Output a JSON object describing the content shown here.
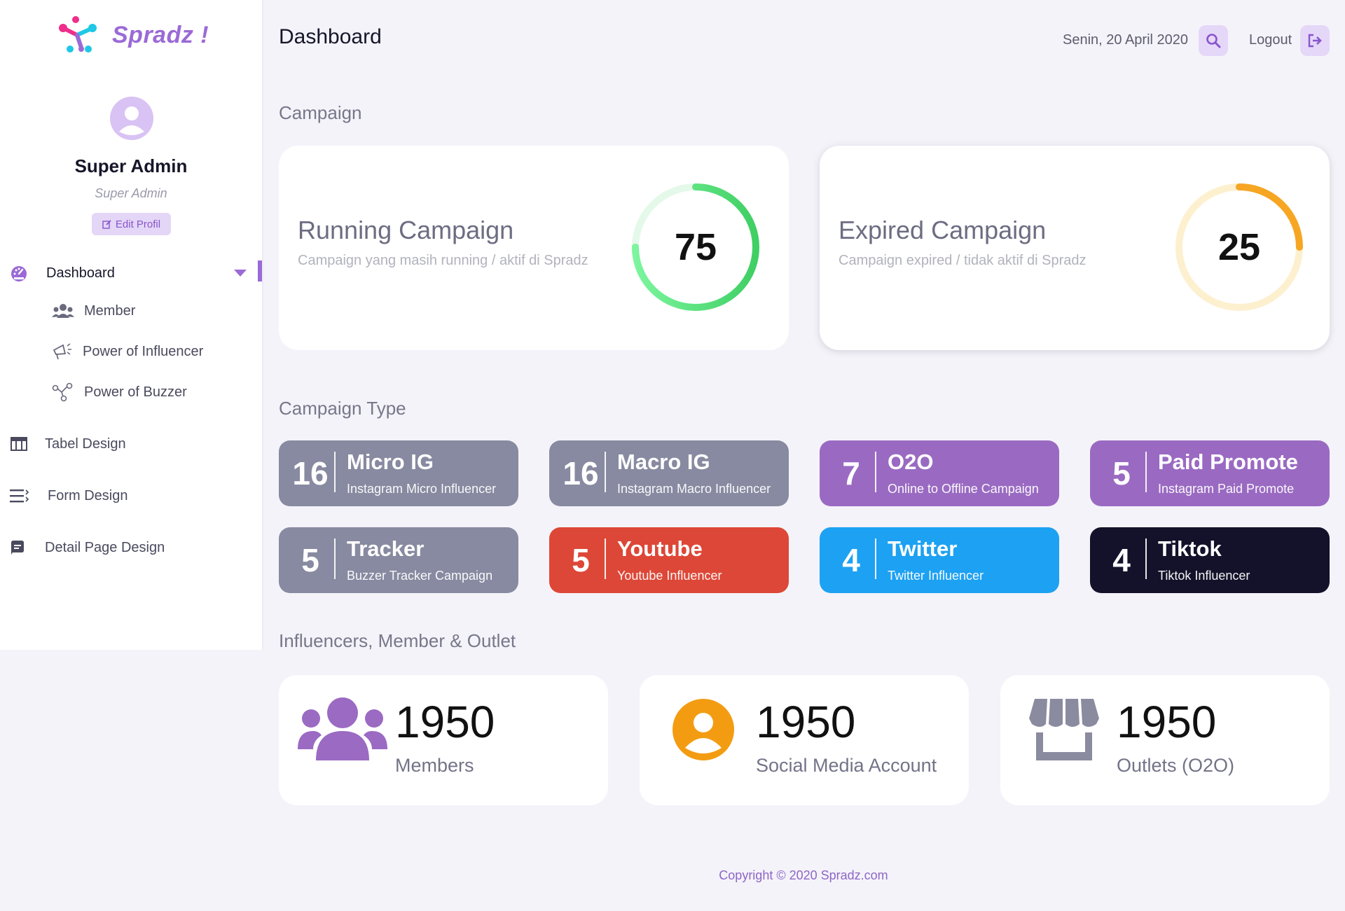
{
  "app": {
    "name": "Spradz !"
  },
  "profile": {
    "name": "Super Admin",
    "role": "Super Admin",
    "edit_label": "Edit Profil"
  },
  "sidebar": {
    "items": [
      {
        "label": "Dashboard",
        "icon": "gauge-icon"
      },
      {
        "label": "Member",
        "icon": "users-icon"
      },
      {
        "label": "Power of Influencer",
        "icon": "megaphone-icon"
      },
      {
        "label": "Power of Buzzer",
        "icon": "share-nodes-icon"
      },
      {
        "label": "Tabel Design",
        "icon": "table-icon"
      },
      {
        "label": "Form Design",
        "icon": "list-icon"
      },
      {
        "label": "Detail Page Design",
        "icon": "message-square-icon"
      }
    ]
  },
  "header": {
    "title": "Dashboard",
    "date": "Senin, 20 April 2020",
    "logout_label": "Logout"
  },
  "sections": {
    "campaign": "Campaign",
    "campaign_type": "Campaign Type",
    "stats": "Influencers, Member & Outlet"
  },
  "campaign": {
    "running": {
      "title": "Running Campaign",
      "subtitle": "Campaign yang masih running / aktif di Spradz",
      "value": "75",
      "percent": 75
    },
    "expired": {
      "title": "Expired Campaign",
      "subtitle": "Campaign expired / tidak aktif di Spradz",
      "value": "25",
      "percent": 25
    }
  },
  "campaign_types": [
    {
      "count": "16",
      "name": "Micro IG",
      "sub": "Instagram Micro Influencer",
      "color": "#878aa0"
    },
    {
      "count": "16",
      "name": "Macro IG",
      "sub": "Instagram Macro Influencer",
      "color": "#878aa0"
    },
    {
      "count": "7",
      "name": "O2O",
      "sub": "Online to Offline Campaign",
      "color": "#9a6ac2"
    },
    {
      "count": "5",
      "name": "Paid Promote",
      "sub": "Instagram Paid Promote",
      "color": "#9a6ac2"
    },
    {
      "count": "5",
      "name": "Tracker",
      "sub": "Buzzer Tracker Campaign",
      "color": "#878aa0"
    },
    {
      "count": "5",
      "name": "Youtube",
      "sub": "Youtube Influencer",
      "color": "#dd4737"
    },
    {
      "count": "4",
      "name": "Twitter",
      "sub": "Twitter Influencer",
      "color": "#1da1f2"
    },
    {
      "count": "4",
      "name": "Tiktok",
      "sub": "Tiktok Influencer",
      "color": "#13122a"
    }
  ],
  "stats": [
    {
      "value": "1950",
      "label": "Members",
      "icon": "users-icon",
      "color": "#9b6ac2"
    },
    {
      "value": "1950",
      "label": "Social Media Account",
      "icon": "user-circle-icon",
      "color": "#f39c12"
    },
    {
      "value": "1950",
      "label": "Outlets (O2O)",
      "icon": "store-icon",
      "color": "#8a8b9e"
    }
  ],
  "footer": {
    "copyright": "Copyright © 2020 Spradz.com"
  }
}
